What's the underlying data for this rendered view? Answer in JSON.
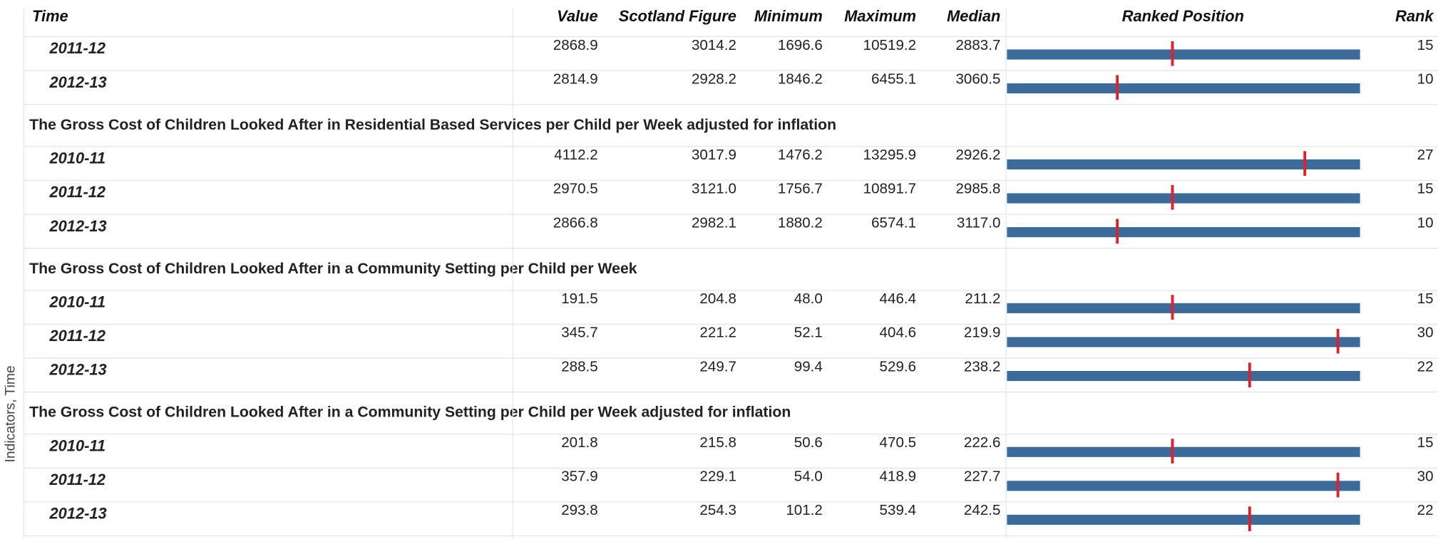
{
  "axis_label": "Indicators, Time",
  "columns": [
    "Time",
    "Value",
    "Scotland Figure",
    "Minimum",
    "Maximum",
    "Median",
    "Ranked Position",
    "Rank"
  ],
  "sections": [
    {
      "rows": [
        {
          "time": "2011-12",
          "cells": [
            "2868.9",
            "3014.2",
            "1696.6",
            "10519.2",
            "2883.7"
          ],
          "rank": 15
        },
        {
          "time": "2012-13",
          "cells": [
            "2814.9",
            "2928.2",
            "1846.2",
            "6455.1",
            "3060.5"
          ],
          "rank": 10
        }
      ]
    },
    {
      "title": "The Gross Cost of Children Looked After in Residential Based Services per Child per Week adjusted for inflation",
      "rows": [
        {
          "time": "2010-11",
          "cells": [
            "4112.2",
            "3017.9",
            "1476.2",
            "13295.9",
            "2926.2"
          ],
          "rank": 27
        },
        {
          "time": "2011-12",
          "cells": [
            "2970.5",
            "3121.0",
            "1756.7",
            "10891.7",
            "2985.8"
          ],
          "rank": 15
        },
        {
          "time": "2012-13",
          "cells": [
            "2866.8",
            "2982.1",
            "1880.2",
            "6574.1",
            "3117.0"
          ],
          "rank": 10
        }
      ]
    },
    {
      "title": "The Gross Cost of Children Looked After in a Community Setting per Child per Week",
      "rows": [
        {
          "time": "2010-11",
          "cells": [
            "191.5",
            "204.8",
            "48.0",
            "446.4",
            "211.2"
          ],
          "rank": 15
        },
        {
          "time": "2011-12",
          "cells": [
            "345.7",
            "221.2",
            "52.1",
            "404.6",
            "219.9"
          ],
          "rank": 30
        },
        {
          "time": "2012-13",
          "cells": [
            "288.5",
            "249.7",
            "99.4",
            "529.6",
            "238.2"
          ],
          "rank": 22
        }
      ]
    },
    {
      "title": "The Gross Cost of Children Looked After in a Community Setting per Child per Week adjusted for inflation",
      "rows": [
        {
          "time": "2010-11",
          "cells": [
            "201.8",
            "215.8",
            "50.6",
            "470.5",
            "222.6"
          ],
          "rank": 15
        },
        {
          "time": "2011-12",
          "cells": [
            "357.9",
            "229.1",
            "54.0",
            "418.9",
            "227.7"
          ],
          "rank": 30
        },
        {
          "time": "2012-13",
          "cells": [
            "293.8",
            "254.3",
            "101.2",
            "539.4",
            "242.5"
          ],
          "rank": 22
        }
      ]
    }
  ]
}
